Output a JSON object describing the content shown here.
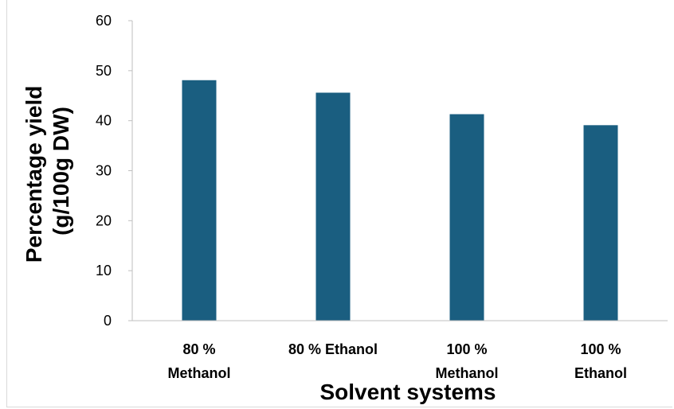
{
  "chart_data": {
    "type": "bar",
    "categories": [
      [
        "80 %",
        "Methanol"
      ],
      [
        "80 % Ethanol"
      ],
      [
        "100 %",
        "Methanol"
      ],
      [
        "100 %",
        "Ethanol"
      ]
    ],
    "values": [
      48.1,
      45.6,
      41.3,
      39.1
    ],
    "title": "",
    "xlabel": "Solvent systems",
    "ylabel": [
      "Percentage yield",
      "(g/100g DW)"
    ],
    "ylim": [
      0,
      60
    ],
    "yticks": [
      "0",
      "10",
      "20",
      "30",
      "40",
      "50",
      "60"
    ],
    "grid": false,
    "bar_color": "#1a5e80"
  }
}
